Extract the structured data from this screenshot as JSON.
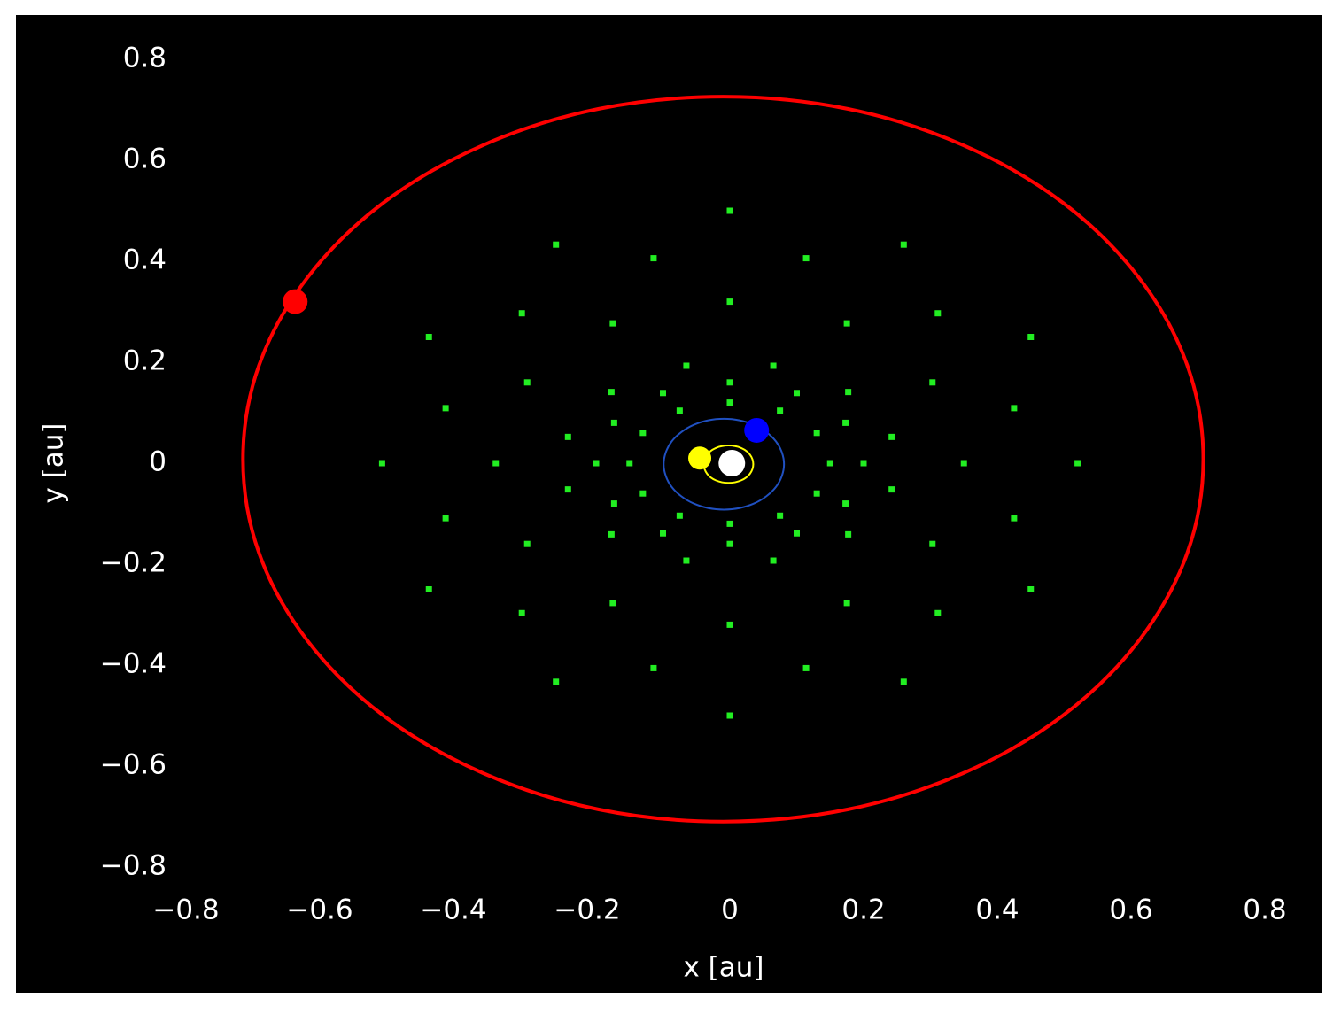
{
  "chart_data": {
    "type": "scatter",
    "xlabel": "x [au]",
    "ylabel": "y [au]",
    "background": "#000000",
    "xlim": [
      -0.8,
      0.8
    ],
    "ylim": [
      -0.8,
      0.8
    ],
    "xticks": [
      {
        "value": -0.8,
        "label": "−0.8"
      },
      {
        "value": -0.6,
        "label": "−0.6"
      },
      {
        "value": -0.4,
        "label": "−0.4"
      },
      {
        "value": -0.2,
        "label": "−0.2"
      },
      0,
      0.2,
      0.4,
      0.6,
      0.8
    ],
    "yticks": [
      {
        "value": -0.8,
        "label": "−0.8"
      },
      {
        "value": -0.6,
        "label": "−0.6"
      },
      {
        "value": -0.4,
        "label": "−0.4"
      },
      {
        "value": -0.2,
        "label": "−0.2"
      },
      0,
      0.2,
      0.4,
      0.6,
      0.8
    ],
    "series": [
      {
        "type": "scatter",
        "marker": "square",
        "color": "#22ee22",
        "size": 7,
        "x": [
          0.15,
          0.13,
          0.075,
          0,
          -0.075,
          -0.13,
          -0.15,
          -0.13,
          -0.075,
          0,
          0.075,
          0.13,
          0.2,
          0.173,
          0.1,
          0,
          -0.1,
          -0.173,
          -0.2,
          -0.173,
          -0.1,
          0,
          0.1,
          0.173,
          0.242,
          0.177,
          0.065,
          -0.065,
          -0.177,
          -0.242,
          -0.242,
          -0.177,
          -0.065,
          0.065,
          0.177,
          0.242,
          0.35,
          0.303,
          0.175,
          0,
          -0.175,
          -0.303,
          -0.35,
          -0.303,
          -0.175,
          0,
          0.175,
          0.303,
          0.425,
          0.311,
          0.114,
          -0.114,
          -0.311,
          -0.425,
          -0.425,
          -0.311,
          -0.114,
          0.114,
          0.311,
          0.425,
          0.52,
          0.45,
          0.26,
          0,
          -0.26,
          -0.45,
          -0.52,
          -0.45,
          -0.26,
          0,
          0.26,
          0.45
        ],
        "y": [
          0,
          0.06,
          0.104,
          0.12,
          0.104,
          0.06,
          0,
          -0.06,
          -0.104,
          -0.12,
          -0.104,
          -0.06,
          0,
          0.08,
          0.139,
          0.16,
          0.139,
          0.08,
          0,
          -0.08,
          -0.139,
          -0.16,
          -0.139,
          -0.08,
          0.052,
          0.141,
          0.193,
          0.193,
          0.141,
          0.052,
          -0.052,
          -0.141,
          -0.193,
          -0.193,
          -0.141,
          -0.052,
          0,
          0.16,
          0.277,
          0.32,
          0.277,
          0.16,
          0,
          -0.16,
          -0.277,
          -0.32,
          -0.277,
          -0.16,
          0.109,
          0.297,
          0.406,
          0.406,
          0.297,
          0.109,
          -0.109,
          -0.297,
          -0.406,
          -0.406,
          -0.297,
          -0.109,
          0,
          0.25,
          0.433,
          0.5,
          0.433,
          0.25,
          0,
          -0.25,
          -0.433,
          -0.5,
          -0.433,
          -0.25
        ]
      },
      {
        "type": "line",
        "color": "#ff0000",
        "width": 4,
        "x": [
          0.708,
          0.684,
          0.612,
          0.498,
          0.349,
          0.176,
          -0.01,
          -0.196,
          -0.369,
          -0.518,
          -0.632,
          -0.704,
          -0.728,
          -0.704,
          -0.632,
          -0.518,
          -0.369,
          -0.196,
          -0.01,
          0.176,
          0.349,
          0.498,
          0.612,
          0.684,
          0.708
        ],
        "y": [
          0.008,
          0.194,
          0.367,
          0.516,
          0.63,
          0.702,
          0.726,
          0.702,
          0.63,
          0.516,
          0.367,
          0.194,
          0.008,
          -0.178,
          -0.351,
          -0.5,
          -0.614,
          -0.686,
          -0.71,
          -0.686,
          -0.614,
          -0.5,
          -0.351,
          -0.178,
          0.008
        ]
      },
      {
        "type": "line",
        "color": "#2050c0",
        "width": 2,
        "x": [
          0.081,
          0.069,
          0.036,
          -0.009,
          -0.054,
          -0.087,
          -0.099,
          -0.087,
          -0.054,
          -0.009,
          0.036,
          0.069,
          0.081
        ],
        "y": [
          -0.002,
          0.043,
          0.076,
          0.088,
          0.076,
          0.043,
          -0.002,
          -0.047,
          -0.08,
          -0.092,
          -0.08,
          -0.047,
          -0.002
        ]
      },
      {
        "type": "line",
        "color": "#ffff00",
        "width": 2,
        "x": [
          0.035,
          0.03,
          0.017,
          -0.002,
          -0.021,
          -0.034,
          -0.039,
          -0.034,
          -0.021,
          -0.002,
          0.017,
          0.03,
          0.035
        ],
        "y": [
          -0.002,
          0.017,
          0.03,
          0.035,
          0.03,
          0.017,
          -0.002,
          -0.021,
          -0.034,
          -0.039,
          -0.034,
          -0.021,
          -0.002
        ]
      },
      {
        "type": "scatter",
        "marker": "circle",
        "color": "#ffffff",
        "size": 15,
        "x": [
          0.003
        ],
        "y": [
          0.0
        ]
      },
      {
        "type": "scatter",
        "marker": "circle",
        "color": "#ffff00",
        "size": 13,
        "x": [
          -0.045
        ],
        "y": [
          0.01
        ]
      },
      {
        "type": "scatter",
        "marker": "circle",
        "color": "#0000ff",
        "size": 14,
        "x": [
          0.04
        ],
        "y": [
          0.065
        ]
      },
      {
        "type": "scatter",
        "marker": "circle",
        "color": "#ff0000",
        "size": 14,
        "x": [
          -0.65
        ],
        "y": [
          0.32
        ]
      }
    ]
  }
}
